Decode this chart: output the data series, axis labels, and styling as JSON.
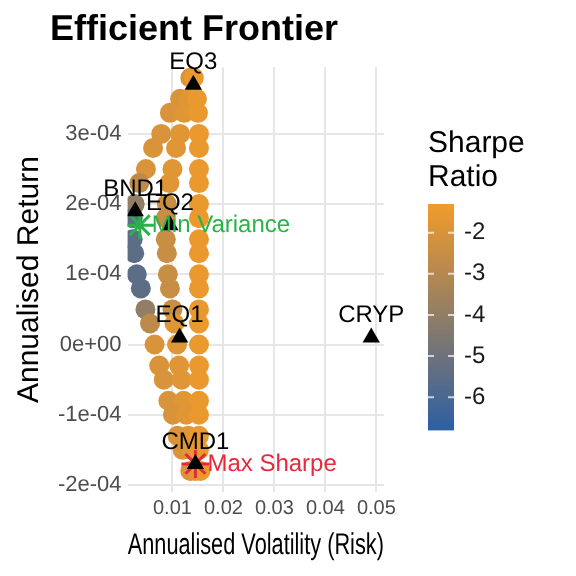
{
  "chart_data": {
    "type": "scatter",
    "title": "Efficient Frontier",
    "xlabel": "Annualised Volatility (Risk)",
    "ylabel": "Annualised Return",
    "clabel": "Sharpe Ratio",
    "xlim": [
      0.0012,
      0.0515
    ],
    "xticks": [
      0.01,
      0.02,
      0.03,
      0.04,
      0.05
    ],
    "ylim": [
      -0.00021,
      0.000395
    ],
    "yticks": [
      {
        "value": 0.0003,
        "label": "3e-04"
      },
      {
        "value": 0.0002,
        "label": "2e-04"
      },
      {
        "value": 0.0001,
        "label": "1e-04"
      },
      {
        "value": 0,
        "label": "0e+00"
      },
      {
        "value": -0.0001,
        "label": "-1e-04"
      },
      {
        "value": -0.0002,
        "label": "-2e-04"
      }
    ],
    "clim": [
      -6.8,
      -1.3
    ],
    "cticks": [
      -2,
      -3,
      -4,
      -5,
      -6
    ],
    "grid": true,
    "legend": false,
    "series": [
      {
        "marker": "circle",
        "x": [
          0.0135,
          0.0142,
          0.0115,
          0.0132,
          0.0148,
          0.0095,
          0.0123,
          0.015,
          0.0078,
          0.0115,
          0.0152,
          0.0062,
          0.0107,
          0.0152,
          0.0048,
          0.01,
          0.0152,
          0.0035,
          0.0094,
          0.0152,
          0.0026,
          0.0089,
          0.0152,
          0.0022,
          0.0087,
          0.0152,
          0.0022,
          0.0087,
          0.0152,
          0.0025,
          0.0089,
          0.0152,
          0.003,
          0.0091,
          0.0152,
          0.0038,
          0.0095,
          0.0152,
          0.0047,
          0.01,
          0.0152,
          0.0056,
          0.0104,
          0.0152,
          0.0065,
          0.0109,
          0.0152,
          0.0074,
          0.0113,
          0.0152,
          0.0083,
          0.0118,
          0.0152,
          0.0092,
          0.0122,
          0.0152,
          0.0101,
          0.0127,
          0.0152,
          0.011,
          0.0131,
          0.0152,
          0.012,
          0.0136,
          0.0152,
          0.0135,
          0.0145,
          0.0155
        ],
        "values": [
          0.00038,
          0.00038,
          0.00035,
          0.00035,
          0.00035,
          0.00033,
          0.00033,
          0.00033,
          0.0003,
          0.0003,
          0.0003,
          0.00028,
          0.00028,
          0.00028,
          0.00025,
          0.00025,
          0.00025,
          0.00023,
          0.00023,
          0.00023,
          0.0002,
          0.0002,
          0.0002,
          0.00018,
          0.00018,
          0.00018,
          0.00015,
          0.00015,
          0.00015,
          0.00013,
          0.00013,
          0.00013,
          0.0001,
          0.0001,
          0.0001,
          8e-05,
          8e-05,
          8e-05,
          5e-05,
          5e-05,
          5e-05,
          3e-05,
          3e-05,
          3e-05,
          0,
          0,
          0,
          -3e-05,
          -3e-05,
          -3e-05,
          -5e-05,
          -5e-05,
          -5e-05,
          -8e-05,
          -8e-05,
          -8e-05,
          -0.0001,
          -0.0001,
          -0.0001,
          -0.00013,
          -0.00013,
          -0.00013,
          -0.00015,
          -0.00015,
          -0.00015,
          -0.00018,
          -0.00018,
          -0.00018
        ],
        "colors": [
          "#d9933a",
          "#ea992e",
          "#d9933a",
          "#e09635",
          "#ea992e",
          "#d9933a",
          "#e09635",
          "#ea992e",
          "#d9933a",
          "#e09635",
          "#ea992e",
          "#d9933a",
          "#e09635",
          "#ea992e",
          "#d9933a",
          "#e09635",
          "#ea992e",
          "#bc8b4b",
          "#e09635",
          "#ea992e",
          "#917e65",
          "#c78e44",
          "#ea992e",
          "#5c6d86",
          "#c78e44",
          "#ea992e",
          "#5c6d86",
          "#c78e44",
          "#ea992e",
          "#5c6d86",
          "#c78e44",
          "#ea992e",
          "#5c6d86",
          "#c78e44",
          "#ea992e",
          "#5c6d86",
          "#c78e44",
          "#ea992e",
          "#917e65",
          "#c78e44",
          "#ea992e",
          "#bc8b4b",
          "#e09635",
          "#ea992e",
          "#d9933a",
          "#e09635",
          "#ea992e",
          "#d9933a",
          "#e09635",
          "#ea992e",
          "#d9933a",
          "#e09635",
          "#ea992e",
          "#d9933a",
          "#e09635",
          "#ea992e",
          "#d9933a",
          "#e09635",
          "#ea992e",
          "#d9933a",
          "#e09635",
          "#ea992e",
          "#d9933a",
          "#e09635",
          "#ea992e",
          "#d9933a",
          "#e09635",
          "#ea992e"
        ]
      },
      {
        "marker": "triangle",
        "color": "#000000",
        "x": [
          0.0141,
          0.0027,
          0.0095,
          0.0114,
          0.049,
          0.0145
        ],
        "values": [
          0.00037,
          0.00019,
          0.00017,
          1e-05,
          1e-05,
          -0.00017
        ]
      },
      {
        "marker": "cross",
        "name": "Min Variance",
        "color": "#2ab24a",
        "x": [
          0.0036
        ],
        "values": [
          0.00017
        ]
      },
      {
        "marker": "cross",
        "name": "Max Sharpe",
        "color": "#e8283c",
        "x": [
          0.0145
        ],
        "values": [
          -0.00017
        ]
      }
    ],
    "annotations": [
      {
        "text": "EQ3",
        "x": 0.0141,
        "y": 0.00037
      },
      {
        "text": "BND1",
        "x": 0.0027,
        "y": 0.00019
      },
      {
        "text": "EQ2",
        "x": 0.0095,
        "y": 0.00017
      },
      {
        "text": "EQ1",
        "x": 0.0114,
        "y": 1e-05
      },
      {
        "text": "CRYP",
        "x": 0.049,
        "y": 1e-05
      },
      {
        "text": "CMD1",
        "x": 0.0145,
        "y": -0.00017
      }
    ]
  }
}
